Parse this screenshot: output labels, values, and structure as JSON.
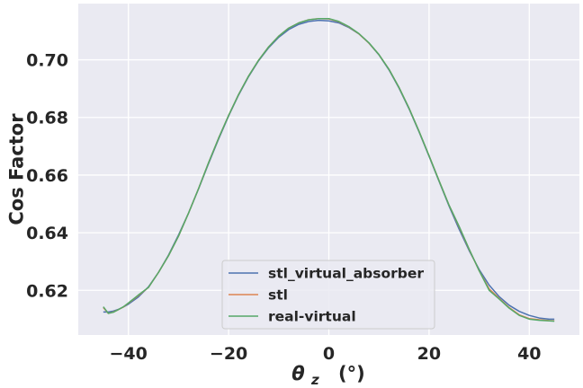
{
  "chart_data": {
    "type": "line",
    "title": "",
    "xlabel_symbol": "θ",
    "xlabel_subscript": "z",
    "xlabel_unit": "(°)",
    "ylabel": "Cos Factor",
    "xlim": [
      -50,
      50
    ],
    "ylim": [
      0.6045,
      0.7195
    ],
    "xticks": [
      -40,
      -20,
      0,
      20,
      40
    ],
    "xtick_labels": [
      "−40",
      "−20",
      "0",
      "20",
      "40"
    ],
    "yticks": [
      0.62,
      0.64,
      0.66,
      0.68,
      0.7
    ],
    "ytick_labels": [
      "0.62",
      "0.64",
      "0.66",
      "0.68",
      "0.70"
    ],
    "grid": true,
    "legend_position": "lower-center",
    "background": "#eaeaf2",
    "series": [
      {
        "name": "stl_virtual_absorber",
        "color": "#4c72b0",
        "x": [
          -45,
          -44,
          -43,
          -42,
          -41,
          -40,
          -38,
          -36,
          -34,
          -32,
          -30,
          -28,
          -26,
          -24,
          -22,
          -20,
          -18,
          -16,
          -14,
          -12,
          -10,
          -8,
          -6,
          -4,
          -2,
          0,
          2,
          4,
          6,
          8,
          10,
          12,
          14,
          16,
          18,
          20,
          22,
          24,
          26,
          28,
          30,
          32,
          34,
          36,
          38,
          40,
          42,
          44,
          45
        ],
        "y": [
          0.6125,
          0.6125,
          0.6128,
          0.6134,
          0.6142,
          0.6152,
          0.6177,
          0.6212,
          0.6262,
          0.6322,
          0.6392,
          0.6468,
          0.6552,
          0.664,
          0.6725,
          0.6805,
          0.6878,
          0.6942,
          0.6997,
          0.7042,
          0.7078,
          0.7105,
          0.7123,
          0.7133,
          0.7137,
          0.7135,
          0.7128,
          0.7112,
          0.709,
          0.7058,
          0.7017,
          0.6965,
          0.6902,
          0.683,
          0.675,
          0.6665,
          0.6578,
          0.6492,
          0.6412,
          0.6338,
          0.6272,
          0.6218,
          0.6178,
          0.6148,
          0.6127,
          0.6113,
          0.6104,
          0.61,
          0.61
        ]
      },
      {
        "name": "stl",
        "color": "#dd8452",
        "x": [
          -45,
          -44,
          -43,
          -42,
          -41,
          -40,
          -38,
          -36,
          -34,
          -32,
          -30,
          -28,
          -26,
          -24,
          -22,
          -20,
          -18,
          -16,
          -14,
          -12,
          -10,
          -8,
          -6,
          -4,
          -2,
          0,
          2,
          4,
          6,
          8,
          10,
          12,
          14,
          16,
          18,
          20,
          22,
          24,
          26,
          28,
          30,
          32,
          34,
          36,
          38,
          40,
          42,
          44,
          45
        ],
        "y": [
          0.614,
          0.612,
          0.6125,
          0.6133,
          0.6142,
          0.6155,
          0.6182,
          0.621,
          0.6262,
          0.632,
          0.6388,
          0.6468,
          0.6553,
          0.6643,
          0.6728,
          0.6807,
          0.688,
          0.6944,
          0.6999,
          0.7045,
          0.7082,
          0.711,
          0.7128,
          0.7139,
          0.7143,
          0.7142,
          0.7132,
          0.7114,
          0.709,
          0.7058,
          0.7018,
          0.6967,
          0.6904,
          0.6832,
          0.6752,
          0.6667,
          0.658,
          0.6495,
          0.642,
          0.6342,
          0.6268,
          0.6205,
          0.6172,
          0.614,
          0.6115,
          0.6102,
          0.6098,
          0.6095,
          0.6094
        ]
      },
      {
        "name": "real-virtual",
        "color": "#55a868",
        "x": [
          -45,
          -44,
          -43,
          -42,
          -41,
          -40,
          -38,
          -36,
          -34,
          -32,
          -30,
          -28,
          -26,
          -24,
          -22,
          -20,
          -18,
          -16,
          -14,
          -12,
          -10,
          -8,
          -6,
          -4,
          -2,
          0,
          2,
          4,
          6,
          8,
          10,
          12,
          14,
          16,
          18,
          20,
          22,
          24,
          26,
          28,
          30,
          32,
          34,
          36,
          38,
          40,
          42,
          44,
          45
        ],
        "y": [
          0.6143,
          0.612,
          0.6124,
          0.6133,
          0.6143,
          0.6156,
          0.6184,
          0.621,
          0.6262,
          0.632,
          0.6388,
          0.6468,
          0.6553,
          0.6643,
          0.6728,
          0.6807,
          0.688,
          0.6944,
          0.6999,
          0.7045,
          0.7082,
          0.711,
          0.7128,
          0.7139,
          0.7143,
          0.7143,
          0.7133,
          0.7115,
          0.7091,
          0.7059,
          0.7018,
          0.6967,
          0.6904,
          0.6832,
          0.6752,
          0.6667,
          0.658,
          0.6495,
          0.6422,
          0.6343,
          0.6268,
          0.62,
          0.617,
          0.6138,
          0.6113,
          0.61,
          0.6096,
          0.6094,
          0.6093
        ]
      }
    ]
  }
}
